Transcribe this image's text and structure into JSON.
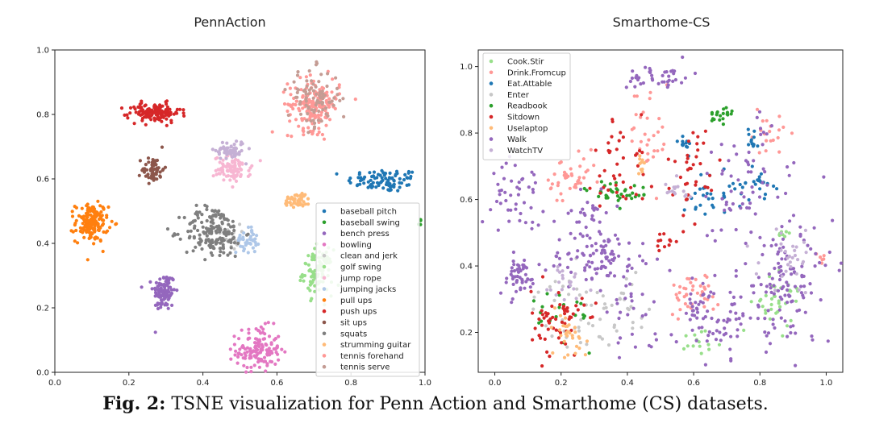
{
  "caption": {
    "label": "Fig. 2:",
    "text": "TSNE visualization for Penn Action and Smarthome (CS) datasets."
  },
  "chart_data": [
    {
      "type": "scatter",
      "title": "PennAction",
      "xlim": [
        0.0,
        1.0
      ],
      "ylim": [
        0.0,
        1.0
      ],
      "xticks": [
        "0.0",
        "0.2",
        "0.4",
        "0.6",
        "0.8",
        "1.0"
      ],
      "yticks": [
        "0.0",
        "0.2",
        "0.4",
        "0.6",
        "0.8",
        "1.0"
      ],
      "legend_position": "lower-right",
      "series": [
        {
          "name": "baseball pitch",
          "color": "#1f77b4",
          "cx": 0.89,
          "cy": 0.595,
          "sx": 0.05,
          "sy": 0.018,
          "n": 90
        },
        {
          "name": "baseball swing",
          "color": "#2ca02c",
          "cx": 0.985,
          "cy": 0.465,
          "sx": 0.01,
          "sy": 0.01,
          "n": 4
        },
        {
          "name": "bench press",
          "color": "#9467bd",
          "cx": 0.295,
          "cy": 0.25,
          "sx": 0.015,
          "sy": 0.03,
          "n": 110
        },
        {
          "name": "bowling",
          "color": "#e377c2",
          "cx": 0.55,
          "cy": 0.07,
          "sx": 0.03,
          "sy": 0.035,
          "n": 140
        },
        {
          "name": "clean and jerk",
          "color": "#c7c7c7",
          "cx": 0.47,
          "cy": 0.42,
          "sx": 0.015,
          "sy": 0.02,
          "n": 20
        },
        {
          "name": "golf swing",
          "color": "#98df8a",
          "cx": 0.71,
          "cy": 0.31,
          "sx": 0.02,
          "sy": 0.035,
          "n": 100
        },
        {
          "name": "jump rope",
          "color": "#f7b6d2",
          "cx": 0.48,
          "cy": 0.63,
          "sx": 0.025,
          "sy": 0.02,
          "n": 90
        },
        {
          "name": "jumping jacks",
          "color": "#aec7e8",
          "cx": 0.52,
          "cy": 0.41,
          "sx": 0.015,
          "sy": 0.02,
          "n": 40
        },
        {
          "name": "pull ups",
          "color": "#ff7f0e",
          "cx": 0.1,
          "cy": 0.465,
          "sx": 0.022,
          "sy": 0.03,
          "n": 160
        },
        {
          "name": "push ups",
          "color": "#d62728",
          "cx": 0.27,
          "cy": 0.805,
          "sx": 0.035,
          "sy": 0.015,
          "n": 130
        },
        {
          "name": "sit ups",
          "color": "#8c564b",
          "cx": 0.265,
          "cy": 0.63,
          "sx": 0.015,
          "sy": 0.02,
          "n": 55
        },
        {
          "name": "squats",
          "color": "#7f7f7f",
          "cx": 0.43,
          "cy": 0.435,
          "sx": 0.04,
          "sy": 0.04,
          "n": 170
        },
        {
          "name": "strumming guitar",
          "color": "#ffbb78",
          "cx": 0.655,
          "cy": 0.535,
          "sx": 0.018,
          "sy": 0.012,
          "n": 50
        },
        {
          "name": "tennis forehand",
          "color": "#ff9896",
          "cx": 0.7,
          "cy": 0.83,
          "sx": 0.035,
          "sy": 0.04,
          "n": 170
        },
        {
          "name": "tennis serve",
          "color": "#c49c94",
          "cx": 0.7,
          "cy": 0.85,
          "sx": 0.035,
          "sy": 0.045,
          "n": 90
        },
        {
          "name": "",
          "color": "#c5b0d5",
          "cx": 0.475,
          "cy": 0.69,
          "sx": 0.02,
          "sy": 0.015,
          "n": 60
        }
      ]
    },
    {
      "type": "scatter",
      "title": "Smarthome-CS",
      "xlim": [
        -0.05,
        1.05
      ],
      "ylim": [
        0.08,
        1.05
      ],
      "xticks": [
        "0.0",
        "0.2",
        "0.4",
        "0.6",
        "0.8",
        "1.0"
      ],
      "yticks": [
        "0.2",
        "0.4",
        "0.6",
        "0.8",
        "1.0"
      ],
      "legend_position": "upper-left",
      "series": [
        {
          "name": "Cook.Stir",
          "color": "#98df8a",
          "clusters": [
            [
              0.84,
              0.28,
              0.03,
              0.04,
              30
            ],
            [
              0.63,
              0.18,
              0.03,
              0.02,
              15
            ],
            [
              0.86,
              0.5,
              0.01,
              0.01,
              8
            ],
            [
              0.9,
              0.33,
              0.01,
              0.01,
              6
            ]
          ]
        },
        {
          "name": "Drink.Fromcup",
          "color": "#ff9896",
          "clusters": [
            [
              0.23,
              0.65,
              0.04,
              0.04,
              40
            ],
            [
              0.6,
              0.32,
              0.04,
              0.03,
              40
            ],
            [
              0.47,
              0.8,
              0.03,
              0.08,
              30
            ],
            [
              0.82,
              0.8,
              0.03,
              0.03,
              20
            ],
            [
              0.98,
              0.42,
              0.01,
              0.01,
              6
            ]
          ]
        },
        {
          "name": "Eat.Attable",
          "color": "#1f77b4",
          "clusters": [
            [
              0.66,
              0.62,
              0.05,
              0.03,
              35
            ],
            [
              0.8,
              0.65,
              0.02,
              0.02,
              20
            ],
            [
              0.57,
              0.78,
              0.01,
              0.02,
              12
            ],
            [
              0.78,
              0.78,
              0.01,
              0.02,
              12
            ]
          ]
        },
        {
          "name": "Enter",
          "color": "#c7c7c7",
          "clusters": [
            [
              0.24,
              0.25,
              0.06,
              0.06,
              40
            ],
            [
              0.4,
              0.3,
              0.03,
              0.05,
              20
            ]
          ]
        },
        {
          "name": "Readbook",
          "color": "#2ca02c",
          "clusters": [
            [
              0.37,
              0.62,
              0.05,
              0.02,
              35
            ],
            [
              0.68,
              0.85,
              0.02,
              0.02,
              20
            ],
            [
              0.22,
              0.27,
              0.05,
              0.05,
              20
            ]
          ]
        },
        {
          "name": "Sitdown",
          "color": "#d62728",
          "clusters": [
            [
              0.19,
              0.23,
              0.04,
              0.05,
              60
            ],
            [
              0.38,
              0.7,
              0.04,
              0.08,
              40
            ],
            [
              0.6,
              0.7,
              0.04,
              0.06,
              35
            ],
            [
              0.52,
              0.48,
              0.02,
              0.02,
              12
            ]
          ]
        },
        {
          "name": "Uselaptop",
          "color": "#ffbb78",
          "clusters": [
            [
              0.22,
              0.2,
              0.03,
              0.04,
              30
            ],
            [
              0.44,
              0.68,
              0.01,
              0.03,
              10
            ]
          ]
        },
        {
          "name": "Walk",
          "color": "#9467bd",
          "clusters": [
            [
              0.07,
              0.37,
              0.03,
              0.03,
              50
            ],
            [
              0.07,
              0.62,
              0.04,
              0.05,
              45
            ],
            [
              0.32,
              0.42,
              0.08,
              0.04,
              90
            ],
            [
              0.5,
              0.97,
              0.05,
              0.02,
              40
            ],
            [
              0.68,
              0.23,
              0.07,
              0.05,
              60
            ],
            [
              0.88,
              0.35,
              0.07,
              0.1,
              120
            ],
            [
              0.75,
              0.65,
              0.08,
              0.1,
              60
            ],
            [
              0.28,
              0.55,
              0.04,
              0.04,
              30
            ],
            [
              0.4,
              0.22,
              0.04,
              0.06,
              25
            ],
            [
              0.62,
              0.3,
              0.03,
              0.03,
              20
            ]
          ]
        },
        {
          "name": "WatchTV",
          "color": "#c5b0d5",
          "clusters": [
            [
              0.9,
              0.42,
              0.05,
              0.05,
              30
            ],
            [
              0.2,
              0.35,
              0.04,
              0.04,
              20
            ],
            [
              0.54,
              0.62,
              0.03,
              0.02,
              15
            ]
          ]
        }
      ]
    }
  ]
}
